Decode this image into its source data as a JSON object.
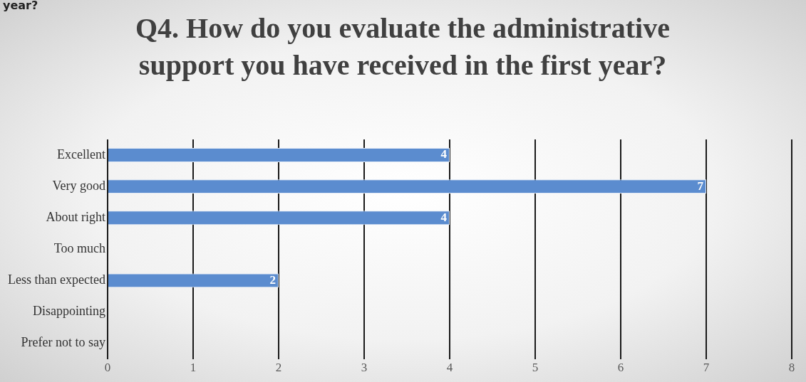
{
  "chart_data": {
    "type": "bar",
    "orientation": "horizontal",
    "title": "Q4. How do you evaluate the administrative support you have received in the first year?",
    "annotations": [
      "year?"
    ],
    "categories": [
      "Excellent",
      "Very good",
      "About right",
      "Too much",
      "Less than expected",
      "Disappointing",
      "Prefer not to say"
    ],
    "values": [
      4,
      7,
      4,
      0,
      2,
      0,
      0
    ],
    "value_labels": [
      "4",
      "7",
      "4",
      null,
      "2",
      null,
      null
    ],
    "color": "#5b8ccf",
    "xlim": [
      0,
      8
    ],
    "xticks": [
      0,
      1,
      2,
      3,
      4,
      5,
      6,
      7,
      8
    ],
    "grid": "x",
    "legend": false
  }
}
